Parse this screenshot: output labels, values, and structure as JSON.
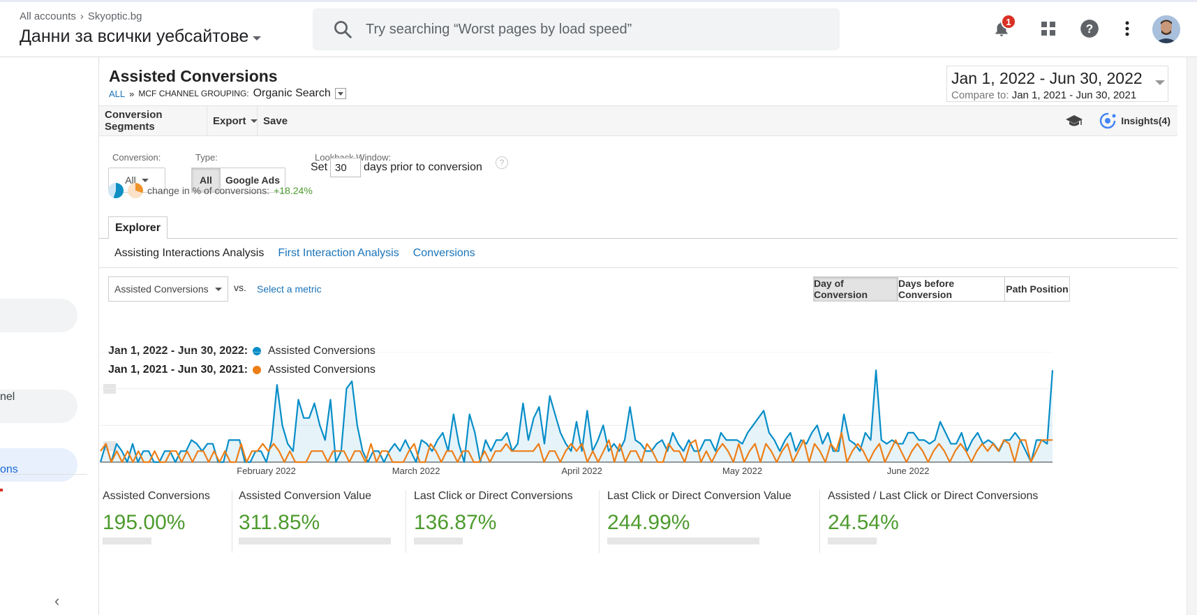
{
  "header": {
    "breadcrumb_account": "All accounts",
    "breadcrumb_property": "Skyoptic.bg",
    "property_view": "Данни за всички уебсайтове",
    "search_placeholder": "Try searching “Worst pages by load speed”",
    "notification_count": "1"
  },
  "sidebar": {
    "item_channel_fragment": "nel",
    "item_conversions_fragment": "ons"
  },
  "report": {
    "title": "Assisted Conversions",
    "crumb_all": "ALL",
    "crumb_sep": "»",
    "crumb_dimension": "MCF Channel Grouping:",
    "crumb_value": "Organic Search",
    "date_range": "Jan 1, 2022 - Jun 30, 2022",
    "compare_label": "Compare to:",
    "compare_range": "Jan 1, 2021 - Jun 30, 2021"
  },
  "toolbar": {
    "segments_label": "Conversion Segments",
    "export_label": "Export",
    "save_label": "Save",
    "insights_label": "Insights(4)"
  },
  "controls": {
    "conversion_label": "Conversion:",
    "conversion_value": "All",
    "type_label": "Type:",
    "type_all": "All",
    "type_google_ads": "Google Ads",
    "lookback_label": "Lookback Window:",
    "lookback_set": "Set",
    "lookback_days": "30",
    "lookback_suffix": "days prior to conversion",
    "change_text": "change in % of conversions:",
    "change_value": "+18.24%"
  },
  "tabs": {
    "explorer": "Explorer",
    "subtabs": [
      "Assisting Interactions Analysis",
      "First Interaction Analysis",
      "Conversions"
    ]
  },
  "chart_controls": {
    "metric": "Assisted Conversions",
    "vs": "vs.",
    "select_metric": "Select a metric",
    "views": [
      "Day of Conversion",
      "Days before Conversion",
      "Path Position"
    ]
  },
  "legend": [
    {
      "range": "Jan 1, 2022 - Jun 30, 2022:",
      "metric": "Assisted Conversions",
      "color": "#058dc7"
    },
    {
      "range": "Jan 1, 2021 - Jun 30, 2021:",
      "metric": "Assisted Conversions",
      "color": "#ed7e17"
    }
  ],
  "chart_data": {
    "type": "line",
    "x_tick_labels": [
      "February 2022",
      "March 2022",
      "April 2022",
      "May 2022",
      "June 2022"
    ],
    "y_axis": "values hidden",
    "ylim": [
      0,
      3
    ],
    "series": [
      {
        "name": "Jan 1, 2022 - Jun 30, 2022: Assisted Conversions",
        "color": "#058dc7",
        "values": [
          0,
          0.5,
          0,
          0.5,
          0.3,
          0,
          0.5,
          0,
          0.3,
          0.3,
          0,
          0,
          0.3,
          0.3,
          0,
          0.3,
          0.3,
          0.6,
          0.5,
          0.3,
          0.5,
          0.5,
          0,
          0,
          0.6,
          0.6,
          0.6,
          0,
          0,
          0.3,
          0.3,
          0,
          0.6,
          2.1,
          1.0,
          0.5,
          0.3,
          1.7,
          1.2,
          1.2,
          1.6,
          1.0,
          0.6,
          1.7,
          0,
          0.3,
          2.0,
          2.2,
          1.0,
          0.3,
          0,
          0.3,
          0.3,
          0,
          0.3,
          0.5,
          0.3,
          0.6,
          0.3,
          0,
          0.6,
          0.5,
          0.3,
          0.6,
          0.8,
          0.3,
          1.3,
          0.5,
          0,
          1.3,
          0.8,
          0,
          0.6,
          0.3,
          0.6,
          0.6,
          0.8,
          0.3,
          0.5,
          1.6,
          0.6,
          1.2,
          1.5,
          0.5,
          1.8,
          1.3,
          0.8,
          0.5,
          0.3,
          1.1,
          0.3,
          1.4,
          0.3,
          0.6,
          1.0,
          0.3,
          0.5,
          0.3,
          0.6,
          1.5,
          0.6,
          0.5,
          0.3,
          0.3,
          0.5,
          0.6,
          0.3,
          0.8,
          0.5,
          0.3,
          0.6,
          0.3,
          0.3,
          0.6,
          0.6,
          0.3,
          0.8,
          0.6,
          0.6,
          0.6,
          0.5,
          0.8,
          1.0,
          1.2,
          1.4,
          0.8,
          0.6,
          0.3,
          0.6,
          0.8,
          0.3,
          0.6,
          0.5,
          0.8,
          1.0,
          0.5,
          0.8,
          0.3,
          0.3,
          1.3,
          0.6,
          0.5,
          0.3,
          0.8,
          0.6,
          2.5,
          0.6,
          0.5,
          0.6,
          0.5,
          0.5,
          0.8,
          0.8,
          0.6,
          0.6,
          0.5,
          0.6,
          1.1,
          0.8,
          0.5,
          0.5,
          0.8,
          0.3,
          0.6,
          0.8,
          0.5,
          0.6,
          0.5,
          0.3,
          0.6,
          0.6,
          0.8,
          0.6,
          0.3,
          0,
          0.6,
          0.6,
          0.5,
          2.5
        ]
      },
      {
        "name": "Jan 1, 2021 - Jun 30, 2021: Assisted Conversions",
        "color": "#ed7e17",
        "values": [
          0.3,
          0.5,
          0,
          0.3,
          0,
          0.3,
          0,
          0.3,
          0,
          0,
          0.3,
          0,
          0,
          0.3,
          0.3,
          0,
          0.3,
          0,
          0.3,
          0.3,
          0,
          0.3,
          0,
          0.3,
          0,
          0,
          0.5,
          0,
          0.3,
          0.3,
          0.5,
          0.3,
          0.5,
          0.3,
          0,
          0.3,
          0,
          0,
          0,
          0.3,
          0.3,
          0.3,
          0,
          0.3,
          0.3,
          0.3,
          0,
          0.3,
          0.3,
          0,
          0.5,
          0,
          0.3,
          0.3,
          0,
          0,
          0,
          0.3,
          0.5,
          0,
          0,
          0.5,
          0.3,
          0,
          0.3,
          0.3,
          0,
          0.3,
          0.3,
          0,
          0,
          0.3,
          0,
          0.3,
          0.3,
          0.5,
          0.3,
          0.3,
          0.3,
          0.3,
          0.3,
          0.5,
          0,
          0.3,
          0.3,
          0,
          0.3,
          0.5,
          0.3,
          0.5,
          0,
          0.3,
          0,
          0.3,
          0.6,
          0,
          0.5,
          0,
          0.3,
          0.3,
          0,
          0.5,
          0.3,
          0,
          0,
          0.5,
          0.3,
          0.3,
          0,
          0.5,
          0.6,
          0,
          0.3,
          0,
          0.3,
          0.5,
          0.3,
          0,
          0.5,
          0,
          0.3,
          0.5,
          0,
          0.5,
          0.3,
          0,
          0.3,
          0.5,
          0,
          0.3,
          0.6,
          0,
          0.5,
          0.3,
          0,
          0.5,
          0.3,
          0.8,
          0,
          0.3,
          0.5,
          0.3,
          0,
          0.3,
          0.5,
          0,
          0.3,
          0.6,
          0.3,
          0,
          0.3,
          0.5,
          0.3,
          0,
          0.3,
          0.5,
          0.3,
          0,
          0.3,
          0.5,
          0.3,
          0,
          0.3,
          0.5,
          0.3,
          0.5,
          0.3,
          0.6,
          0.5,
          0,
          0.6,
          0.6,
          0,
          0.3,
          0.6,
          0.6,
          0.6
        ]
      }
    ]
  },
  "summary": [
    {
      "label": "Assisted Conversions",
      "value": "195.00%"
    },
    {
      "label": "Assisted Conversion Value",
      "value": "311.85%"
    },
    {
      "label": "Last Click or Direct Conversions",
      "value": "136.87%"
    },
    {
      "label": "Last Click or Direct Conversion Value",
      "value": "244.99%"
    },
    {
      "label": "Assisted / Last Click or Direct Conversions",
      "value": "24.54%"
    }
  ]
}
